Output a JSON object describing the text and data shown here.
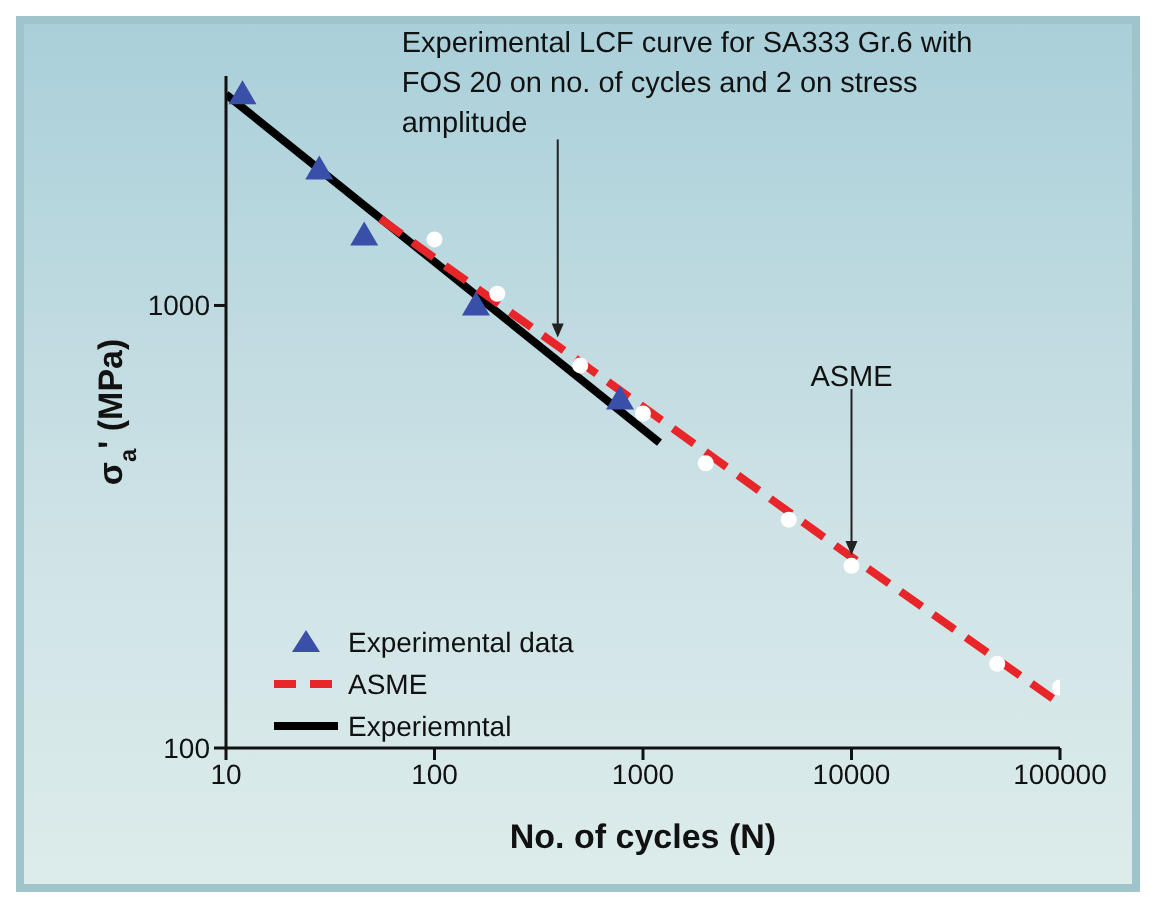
{
  "chart_data": {
    "type": "line",
    "xlabel": "No. of cycles (N)",
    "ylabel": "σ$_{a}$' (MPa)",
    "log": "xy",
    "xlim": [
      10,
      100000
    ],
    "xticks": [
      10,
      100,
      1000,
      10000,
      100000
    ],
    "ylim": [
      100,
      3300
    ],
    "yticks": [
      100,
      1000
    ],
    "legend": "bottom left",
    "series": [
      {
        "name": "Experimental data",
        "type": "scatter",
        "marker": "triangle",
        "color": "#3a4fa8",
        "x": [
          12,
          28,
          46,
          158,
          776
        ],
        "values": [
          3000,
          2030,
          1440,
          1000,
          613
        ]
      },
      {
        "name": "ASME",
        "line_style": "dashed",
        "marker": "none",
        "color": "#e8262a",
        "x": [
          55,
          100,
          1000,
          10000,
          100000
        ],
        "values": [
          1570,
          1280,
          590,
          270,
          126
        ]
      },
      {
        "name": "Experiemntal",
        "line_style": "solid",
        "marker": "none",
        "color": "#000000",
        "x": [
          10,
          1200
        ],
        "values": [
          3000,
          490
        ]
      },
      {
        "type": "scatter",
        "marker": "circle",
        "color": "#ffffff",
        "x": [
          100,
          200,
          500,
          1000,
          2000,
          5000,
          10000,
          50000,
          100000
        ],
        "values": [
          1410,
          1063,
          732,
          570,
          440,
          328,
          258,
          155,
          137
        ]
      }
    ],
    "annotations": [
      {
        "text": "Experimental LCF curve for SA333 Gr.6 with FOS 20 on no. of cycles and 2 on stress amplitude",
        "x": 390,
        "y": 838
      },
      {
        "text": "ASME",
        "x": 10000,
        "y": 270
      }
    ]
  }
}
